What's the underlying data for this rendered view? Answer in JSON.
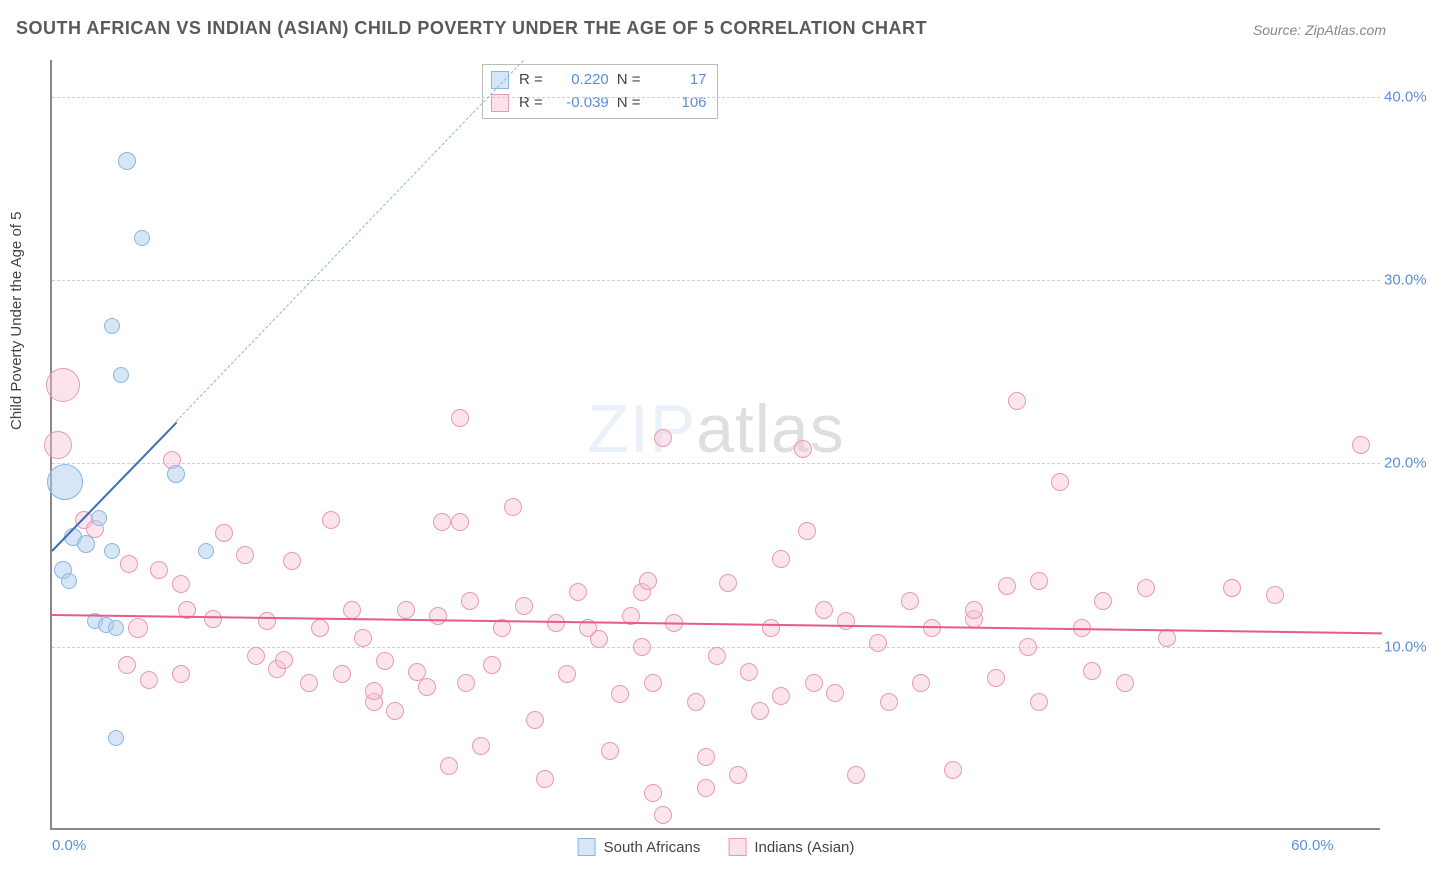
{
  "title": "SOUTH AFRICAN VS INDIAN (ASIAN) CHILD POVERTY UNDER THE AGE OF 5 CORRELATION CHART",
  "source_label": "Source: ZipAtlas.com",
  "ylabel": "Child Poverty Under the Age of 5",
  "watermark_zip": "ZIP",
  "watermark_atlas": "atlas",
  "chart": {
    "type": "scatter",
    "background_color": "#ffffff",
    "grid_color": "#d0d0d0",
    "axis_color": "#888888",
    "tick_label_color": "#5b8fd6",
    "xlim": [
      0,
      62
    ],
    "ylim": [
      0,
      42
    ],
    "yticks": [
      {
        "v": 10,
        "label": "10.0%"
      },
      {
        "v": 20,
        "label": "20.0%"
      },
      {
        "v": 30,
        "label": "30.0%"
      },
      {
        "v": 40,
        "label": "40.0%"
      }
    ],
    "xticks": [
      {
        "v": 0,
        "label": "0.0%"
      },
      {
        "v": 60,
        "label": "60.0%"
      }
    ],
    "series": {
      "blue": {
        "label": "South Africans",
        "color_fill": "rgba(173,205,237,0.5)",
        "color_stroke": "#8db5df",
        "trend_color": "#3b6fb5",
        "R": "0.220",
        "N": "17",
        "trend_solid": {
          "x1": 0,
          "y1": 15.3,
          "x2": 5.8,
          "y2": 22.3
        },
        "trend_dashed": {
          "x1": 5.8,
          "y1": 22.3,
          "x2": 22,
          "y2": 42
        },
        "points": [
          {
            "x": 3.5,
            "y": 36.5,
            "r": 9
          },
          {
            "x": 4.2,
            "y": 32.3,
            "r": 8
          },
          {
            "x": 2.8,
            "y": 27.5,
            "r": 8
          },
          {
            "x": 3.2,
            "y": 24.8,
            "r": 8
          },
          {
            "x": 0.6,
            "y": 19.0,
            "r": 18
          },
          {
            "x": 5.8,
            "y": 19.4,
            "r": 9
          },
          {
            "x": 2.2,
            "y": 17.0,
            "r": 8
          },
          {
            "x": 1.0,
            "y": 16.0,
            "r": 9
          },
          {
            "x": 1.6,
            "y": 15.6,
            "r": 9
          },
          {
            "x": 2.8,
            "y": 15.2,
            "r": 8
          },
          {
            "x": 0.5,
            "y": 14.2,
            "r": 9
          },
          {
            "x": 0.8,
            "y": 13.6,
            "r": 8
          },
          {
            "x": 7.2,
            "y": 15.2,
            "r": 8
          },
          {
            "x": 2.0,
            "y": 11.4,
            "r": 8
          },
          {
            "x": 2.5,
            "y": 11.2,
            "r": 8
          },
          {
            "x": 3.0,
            "y": 11.0,
            "r": 8
          },
          {
            "x": 3.0,
            "y": 5.0,
            "r": 8
          }
        ]
      },
      "pink": {
        "label": "Indians (Asian)",
        "color_fill": "rgba(247,195,210,0.45)",
        "color_stroke": "#e79bb2",
        "trend_color": "#e75a8b",
        "R": "-0.039",
        "N": "106",
        "trend_solid": {
          "x1": 0,
          "y1": 11.8,
          "x2": 62,
          "y2": 10.8
        },
        "points": [
          {
            "x": 0.5,
            "y": 24.3,
            "r": 17
          },
          {
            "x": 0.3,
            "y": 21.0,
            "r": 14
          },
          {
            "x": 1.5,
            "y": 16.9,
            "r": 9
          },
          {
            "x": 2.0,
            "y": 16.4,
            "r": 9
          },
          {
            "x": 5.6,
            "y": 20.2,
            "r": 9
          },
          {
            "x": 3.6,
            "y": 14.5,
            "r": 9
          },
          {
            "x": 5.0,
            "y": 14.2,
            "r": 9
          },
          {
            "x": 6.0,
            "y": 13.4,
            "r": 9
          },
          {
            "x": 4.0,
            "y": 11.0,
            "r": 10
          },
          {
            "x": 3.5,
            "y": 9.0,
            "r": 9
          },
          {
            "x": 4.5,
            "y": 8.2,
            "r": 9
          },
          {
            "x": 6.0,
            "y": 8.5,
            "r": 9
          },
          {
            "x": 6.3,
            "y": 12.0,
            "r": 9
          },
          {
            "x": 7.5,
            "y": 11.5,
            "r": 9
          },
          {
            "x": 9.0,
            "y": 15.0,
            "r": 9
          },
          {
            "x": 10.0,
            "y": 11.4,
            "r": 9
          },
          {
            "x": 10.5,
            "y": 8.8,
            "r": 9
          },
          {
            "x": 10.8,
            "y": 9.3,
            "r": 9
          },
          {
            "x": 11.2,
            "y": 14.7,
            "r": 9
          },
          {
            "x": 12.0,
            "y": 8.0,
            "r": 9
          },
          {
            "x": 12.5,
            "y": 11.0,
            "r": 9
          },
          {
            "x": 13.0,
            "y": 16.9,
            "r": 9
          },
          {
            "x": 13.5,
            "y": 8.5,
            "r": 9
          },
          {
            "x": 14.0,
            "y": 12.0,
            "r": 9
          },
          {
            "x": 14.5,
            "y": 10.5,
            "r": 9
          },
          {
            "x": 15.0,
            "y": 7.0,
            "r": 9
          },
          {
            "x": 15.0,
            "y": 7.6,
            "r": 9
          },
          {
            "x": 15.5,
            "y": 9.2,
            "r": 9
          },
          {
            "x": 16.0,
            "y": 6.5,
            "r": 9
          },
          {
            "x": 16.5,
            "y": 12.0,
            "r": 9
          },
          {
            "x": 17.0,
            "y": 8.6,
            "r": 9
          },
          {
            "x": 17.5,
            "y": 7.8,
            "r": 9
          },
          {
            "x": 18.0,
            "y": 11.7,
            "r": 9
          },
          {
            "x": 18.2,
            "y": 16.8,
            "r": 9
          },
          {
            "x": 18.5,
            "y": 3.5,
            "r": 9
          },
          {
            "x": 19.0,
            "y": 22.5,
            "r": 9
          },
          {
            "x": 19.0,
            "y": 16.8,
            "r": 9
          },
          {
            "x": 19.3,
            "y": 8.0,
            "r": 9
          },
          {
            "x": 19.5,
            "y": 12.5,
            "r": 9
          },
          {
            "x": 20.0,
            "y": 4.6,
            "r": 9
          },
          {
            "x": 20.5,
            "y": 9.0,
            "r": 9
          },
          {
            "x": 21.0,
            "y": 11.0,
            "r": 9
          },
          {
            "x": 21.5,
            "y": 17.6,
            "r": 9
          },
          {
            "x": 22.0,
            "y": 12.2,
            "r": 9
          },
          {
            "x": 22.5,
            "y": 6.0,
            "r": 9
          },
          {
            "x": 23.0,
            "y": 2.8,
            "r": 9
          },
          {
            "x": 23.5,
            "y": 11.3,
            "r": 9
          },
          {
            "x": 24.0,
            "y": 8.5,
            "r": 9
          },
          {
            "x": 24.5,
            "y": 13.0,
            "r": 9
          },
          {
            "x": 25.0,
            "y": 11.0,
            "r": 9
          },
          {
            "x": 25.5,
            "y": 10.4,
            "r": 9
          },
          {
            "x": 26.5,
            "y": 7.4,
            "r": 9
          },
          {
            "x": 27.0,
            "y": 11.7,
            "r": 9
          },
          {
            "x": 27.5,
            "y": 10.0,
            "r": 9
          },
          {
            "x": 27.5,
            "y": 13.0,
            "r": 9
          },
          {
            "x": 27.8,
            "y": 13.6,
            "r": 9
          },
          {
            "x": 28.0,
            "y": 8.0,
            "r": 9
          },
          {
            "x": 28.0,
            "y": 2.0,
            "r": 9
          },
          {
            "x": 28.5,
            "y": 21.4,
            "r": 9
          },
          {
            "x": 28.5,
            "y": 0.8,
            "r": 9
          },
          {
            "x": 29.0,
            "y": 11.3,
            "r": 9
          },
          {
            "x": 30.0,
            "y": 7.0,
            "r": 9
          },
          {
            "x": 30.5,
            "y": 4.0,
            "r": 9
          },
          {
            "x": 30.5,
            "y": 2.3,
            "r": 9
          },
          {
            "x": 31.0,
            "y": 9.5,
            "r": 9
          },
          {
            "x": 31.5,
            "y": 13.5,
            "r": 9
          },
          {
            "x": 32.0,
            "y": 3.0,
            "r": 9
          },
          {
            "x": 32.5,
            "y": 8.6,
            "r": 9
          },
          {
            "x": 33.0,
            "y": 6.5,
            "r": 9
          },
          {
            "x": 33.5,
            "y": 11.0,
            "r": 9
          },
          {
            "x": 34.0,
            "y": 14.8,
            "r": 9
          },
          {
            "x": 34.0,
            "y": 7.3,
            "r": 9
          },
          {
            "x": 35.0,
            "y": 20.8,
            "r": 9
          },
          {
            "x": 35.2,
            "y": 16.3,
            "r": 9
          },
          {
            "x": 35.5,
            "y": 8.0,
            "r": 9
          },
          {
            "x": 36.0,
            "y": 12.0,
            "r": 9
          },
          {
            "x": 36.5,
            "y": 7.5,
            "r": 9
          },
          {
            "x": 37.0,
            "y": 11.4,
            "r": 9
          },
          {
            "x": 37.5,
            "y": 3.0,
            "r": 9
          },
          {
            "x": 38.5,
            "y": 10.2,
            "r": 9
          },
          {
            "x": 39.0,
            "y": 7.0,
            "r": 9
          },
          {
            "x": 40.0,
            "y": 12.5,
            "r": 9
          },
          {
            "x": 40.5,
            "y": 8.0,
            "r": 9
          },
          {
            "x": 41.0,
            "y": 11.0,
            "r": 9
          },
          {
            "x": 42.0,
            "y": 3.3,
            "r": 9
          },
          {
            "x": 43.0,
            "y": 11.5,
            "r": 9
          },
          {
            "x": 43.0,
            "y": 12.0,
            "r": 9
          },
          {
            "x": 44.0,
            "y": 8.3,
            "r": 9
          },
          {
            "x": 44.5,
            "y": 13.3,
            "r": 9
          },
          {
            "x": 45.0,
            "y": 23.4,
            "r": 9
          },
          {
            "x": 45.5,
            "y": 10.0,
            "r": 9
          },
          {
            "x": 46.0,
            "y": 13.6,
            "r": 9
          },
          {
            "x": 46.0,
            "y": 7.0,
            "r": 9
          },
          {
            "x": 47.0,
            "y": 19.0,
            "r": 9
          },
          {
            "x": 48.0,
            "y": 11.0,
            "r": 9
          },
          {
            "x": 48.5,
            "y": 8.7,
            "r": 9
          },
          {
            "x": 49.0,
            "y": 12.5,
            "r": 9
          },
          {
            "x": 50.0,
            "y": 8.0,
            "r": 9
          },
          {
            "x": 51.0,
            "y": 13.2,
            "r": 9
          },
          {
            "x": 52.0,
            "y": 10.5,
            "r": 9
          },
          {
            "x": 55.0,
            "y": 13.2,
            "r": 9
          },
          {
            "x": 57.0,
            "y": 12.8,
            "r": 9
          },
          {
            "x": 61.0,
            "y": 21.0,
            "r": 9
          },
          {
            "x": 8.0,
            "y": 16.2,
            "r": 9
          },
          {
            "x": 9.5,
            "y": 9.5,
            "r": 9
          },
          {
            "x": 26.0,
            "y": 4.3,
            "r": 9
          }
        ]
      }
    }
  },
  "stats_box": {
    "rows": [
      {
        "series": "blue",
        "R_label": "R =",
        "R": "0.220",
        "N_label": "N =",
        "N": "17"
      },
      {
        "series": "pink",
        "R_label": "R =",
        "R": "-0.039",
        "N_label": "N =",
        "N": "106"
      }
    ]
  }
}
